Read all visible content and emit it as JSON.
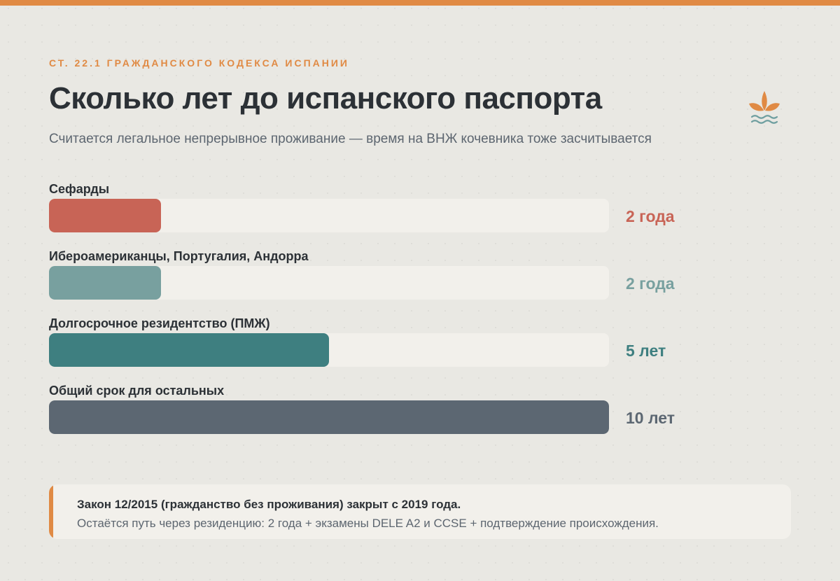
{
  "header": {
    "eyebrow": "СТ. 22.1 ГРАЖДАНСКОГО КОДЕКСА ИСПАНИИ",
    "title": "Сколько лет до испанского паспорта",
    "subtitle": "Считается легальное непрерывное проживание — время на ВНЖ кочевника тоже засчитывается"
  },
  "logo": {
    "icon": "lotus-waves-icon",
    "colors": [
      "#e08a44",
      "#6f9fa0"
    ]
  },
  "colors": {
    "accent": "#e08a44",
    "track": "#f2f0eb"
  },
  "chart_data": {
    "type": "bar",
    "orientation": "horizontal",
    "unit": "years",
    "xlim": [
      0,
      10
    ],
    "grid": false,
    "categories": [
      "Сефарды",
      "Ибероамериканцы, Португалия, Андорра",
      "Долгосрочное резидентство (ПМЖ)",
      "Общий срок для остальных"
    ],
    "values": [
      2,
      2,
      5,
      10
    ],
    "value_labels": [
      "2 года",
      "2 года",
      "5 лет",
      "10 лет"
    ],
    "colors": [
      "#c86456",
      "#78a09f",
      "#3e7f80",
      "#5c6772"
    ]
  },
  "note": {
    "title": "Закон 12/2015 (гражданство без проживания) закрыт с 2019 года.",
    "text": "Остаётся путь через резиденцию: 2 года + экзамены DELE A2 и CCSE + подтверждение происхождения."
  }
}
